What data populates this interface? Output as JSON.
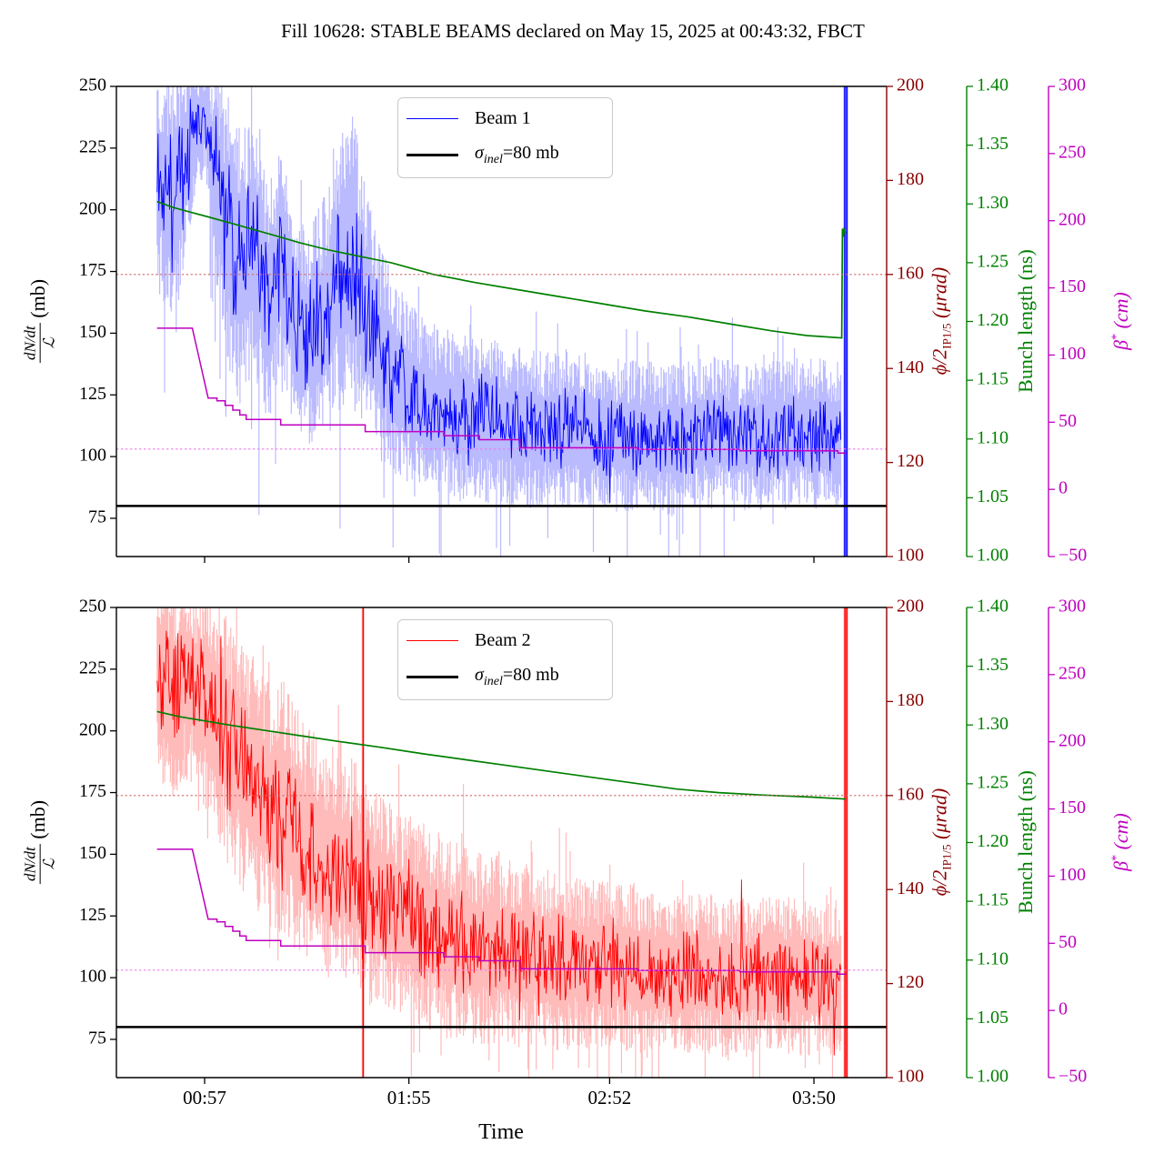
{
  "title": "Fill 10628: STABLE BEAMS declared on May 15, 2025 at 00:43:32, FBCT",
  "legend": {
    "beam1": "Beam 1",
    "beam2": "Beam 2",
    "sigma_symbol": "σ",
    "sigma_sub": "inel",
    "sigma_suffix": "=80 mb"
  },
  "axis_labels": {
    "left_numerator": "dN/dt",
    "left_denominator": "ℒ",
    "left_unit": " (mb)",
    "x_label": "Time",
    "phi_main": "ϕ/2",
    "phi_sub": "IP1/5",
    "phi_unit": " (μrad)",
    "bunch": "Bunch length (ns)",
    "beta_main": "β",
    "beta_sup": "*",
    "beta_unit": " (cm)"
  },
  "colors": {
    "beam1": "#0000ff",
    "beam1_band": "rgba(0,0,255,0.27)",
    "beam2": "#ff0000",
    "beam2_band": "rgba(255,0,0,0.27)",
    "bunch": "#008000",
    "beta": "#bf00bf",
    "beta_dashed": "#ee7bee",
    "phi": "#8b0000",
    "phi_dashed": "#cd6666",
    "sigma": "#000000",
    "axis": "#000000"
  },
  "axes_ticks": {
    "left_values": [
      250,
      225,
      200,
      175,
      150,
      125,
      100,
      75
    ],
    "left_labels": [
      "250",
      "225",
      "200",
      "175",
      "150",
      "125",
      "100",
      "75"
    ],
    "x_tick_minutes": [
      57,
      115,
      172,
      230
    ],
    "x_tick_labels": [
      "00:57",
      "01:55",
      "02:52",
      "03:50"
    ],
    "phi_values": [
      200,
      180,
      160,
      140,
      120,
      100
    ],
    "phi_labels": [
      "200",
      "180",
      "160",
      "140",
      "120",
      "100"
    ],
    "bunch_values": [
      1.4,
      1.35,
      1.3,
      1.25,
      1.2,
      1.15,
      1.1,
      1.05,
      1.0
    ],
    "bunch_labels": [
      "1.40",
      "1.35",
      "1.30",
      "1.25",
      "1.20",
      "1.15",
      "1.10",
      "1.05",
      "1.00"
    ],
    "beta_values": [
      300,
      250,
      200,
      150,
      100,
      50,
      0,
      -50
    ],
    "beta_labels": [
      "300",
      "250",
      "200",
      "150",
      "100",
      "50",
      "0",
      "−50"
    ]
  },
  "chart_data": {
    "type": "line",
    "title": "Fill 10628: STABLE BEAMS declared on May 15, 2025 at 00:43:32, FBCT",
    "x_axis": {
      "unit": "time of day (minutes from 00:00)",
      "xlim_minutes": [
        31.95,
        250.65
      ],
      "data_start_minutes": 43.53,
      "data_end_minutes": 239.3
    },
    "left_ylim": [
      59.5,
      250
    ],
    "phi_ylim": [
      100,
      200
    ],
    "bunch_ylim": [
      1.0,
      1.4
    ],
    "beta_ylim": [
      -50,
      300
    ],
    "sigma_inel_mb": 80,
    "phi_half_urad": 160,
    "beta_target_cm": 30,
    "panels": [
      {
        "name": "beam1",
        "beam_trend_t_center_halfwidth": [
          [
            43.5,
            215,
            42
          ],
          [
            47,
            205,
            50
          ],
          [
            51,
            215,
            45
          ],
          [
            54,
            232,
            28
          ],
          [
            57,
            238,
            22
          ],
          [
            60,
            215,
            40
          ],
          [
            63,
            195,
            52
          ],
          [
            67,
            176,
            55
          ],
          [
            71,
            186,
            50
          ],
          [
            75,
            163,
            48
          ],
          [
            79,
            180,
            46
          ],
          [
            83,
            153,
            43
          ],
          [
            87,
            149,
            43
          ],
          [
            91,
            156,
            48
          ],
          [
            95,
            176,
            58
          ],
          [
            99,
            181,
            58
          ],
          [
            103,
            156,
            48
          ],
          [
            108,
            139,
            41
          ],
          [
            113,
            129,
            37
          ],
          [
            118,
            122,
            34
          ],
          [
            124,
            118,
            33
          ],
          [
            130,
            116,
            33
          ],
          [
            137,
            114,
            33
          ],
          [
            145,
            112,
            32
          ],
          [
            153,
            111,
            31
          ],
          [
            161,
            112,
            31
          ],
          [
            170,
            109,
            30
          ],
          [
            180,
            108,
            30
          ],
          [
            190,
            107,
            30
          ],
          [
            200,
            110,
            30
          ],
          [
            210,
            108,
            29
          ],
          [
            220,
            109,
            29
          ],
          [
            228,
            110,
            30
          ],
          [
            234,
            108,
            30
          ],
          [
            237.8,
            109,
            30
          ]
        ],
        "spike_minutes": [
          238.75,
          239.35
        ],
        "bunch_length_ns": [
          [
            43.5,
            1.302
          ],
          [
            48,
            1.297
          ],
          [
            53,
            1.293
          ],
          [
            58,
            1.289
          ],
          [
            64,
            1.284
          ],
          [
            70,
            1.279
          ],
          [
            77,
            1.273
          ],
          [
            84,
            1.267
          ],
          [
            92,
            1.261
          ],
          [
            100,
            1.256
          ],
          [
            110,
            1.25
          ],
          [
            122,
            1.24
          ],
          [
            134,
            1.233
          ],
          [
            146,
            1.227
          ],
          [
            158,
            1.221
          ],
          [
            170,
            1.215
          ],
          [
            182,
            1.209
          ],
          [
            194,
            1.204
          ],
          [
            206,
            1.198
          ],
          [
            218,
            1.192
          ],
          [
            228,
            1.188
          ],
          [
            237.9,
            1.186
          ],
          [
            238.1,
            1.279
          ],
          [
            238.35,
            1.272
          ],
          [
            238.6,
            1.278
          ],
          [
            239.0,
            1.275
          ]
        ],
        "beta_star_cm": [
          [
            43.5,
            120
          ],
          [
            53.5,
            120
          ],
          [
            58,
            68
          ],
          [
            60.5,
            68
          ],
          [
            60.5,
            66
          ],
          [
            62.8,
            66
          ],
          [
            62.8,
            62.5
          ],
          [
            65,
            62.5
          ],
          [
            65,
            59
          ],
          [
            67,
            59
          ],
          [
            67,
            55.5
          ],
          [
            68.8,
            55.5
          ],
          [
            68.8,
            52
          ],
          [
            78.6,
            52
          ],
          [
            78.6,
            48
          ],
          [
            102.6,
            48
          ],
          [
            102.6,
            43
          ],
          [
            124.9,
            43
          ],
          [
            124.9,
            40
          ],
          [
            135,
            40
          ],
          [
            135,
            37
          ],
          [
            146.5,
            37
          ],
          [
            146.5,
            31
          ],
          [
            180,
            31
          ],
          [
            180,
            29.8
          ],
          [
            209,
            29.8
          ],
          [
            209,
            28.7
          ],
          [
            236.8,
            28.7
          ],
          [
            236.8,
            27
          ],
          [
            239.2,
            27
          ]
        ]
      },
      {
        "name": "beam2",
        "beam_trend_t_center_halfwidth": [
          [
            43.5,
            225,
            40
          ],
          [
            48,
            215,
            45
          ],
          [
            52,
            222,
            38
          ],
          [
            56,
            215,
            42
          ],
          [
            60,
            205,
            46
          ],
          [
            64,
            196,
            50
          ],
          [
            68,
            186,
            50
          ],
          [
            72,
            178,
            50
          ],
          [
            76,
            170,
            48
          ],
          [
            80,
            168,
            50
          ],
          [
            84,
            158,
            47
          ],
          [
            88,
            152,
            46
          ],
          [
            92,
            148,
            46
          ],
          [
            96,
            145,
            45
          ],
          [
            101,
            140,
            45
          ],
          [
            106,
            133,
            43
          ],
          [
            112,
            127,
            41
          ],
          [
            118,
            122,
            40
          ],
          [
            125,
            117,
            39
          ],
          [
            132,
            113,
            38
          ],
          [
            140,
            111,
            37
          ],
          [
            148,
            109,
            36
          ],
          [
            156,
            107,
            35
          ],
          [
            164,
            106,
            34
          ],
          [
            172,
            106,
            33
          ],
          [
            181,
            103,
            33
          ],
          [
            190,
            102,
            32
          ],
          [
            199,
            101,
            32
          ],
          [
            208,
            100,
            31
          ],
          [
            217,
            101,
            31
          ],
          [
            226,
            100,
            31
          ],
          [
            233,
            99,
            30
          ],
          [
            237.8,
            100,
            30
          ]
        ],
        "spike_minutes": [
          102,
          238.8,
          239.35
        ],
        "bunch_length_ns": [
          [
            43.5,
            1.3115
          ],
          [
            50,
            1.307
          ],
          [
            57,
            1.3035
          ],
          [
            65,
            1.2995
          ],
          [
            75,
            1.295
          ],
          [
            85,
            1.2905
          ],
          [
            95,
            1.286
          ],
          [
            107,
            1.281
          ],
          [
            119,
            1.2755
          ],
          [
            131,
            1.2705
          ],
          [
            143,
            1.2655
          ],
          [
            155,
            1.2605
          ],
          [
            167,
            1.2555
          ],
          [
            179,
            1.2505
          ],
          [
            191,
            1.2455
          ],
          [
            203,
            1.2425
          ],
          [
            215,
            1.2405
          ],
          [
            227,
            1.239
          ],
          [
            239,
            1.237
          ]
        ],
        "beta_star_cm": [
          [
            43.5,
            120
          ],
          [
            53.5,
            120
          ],
          [
            58,
            68
          ],
          [
            60.5,
            68
          ],
          [
            60.5,
            66
          ],
          [
            62.8,
            66
          ],
          [
            62.8,
            62.5
          ],
          [
            65,
            62.5
          ],
          [
            65,
            59
          ],
          [
            67,
            59
          ],
          [
            67,
            55.5
          ],
          [
            68.8,
            55.5
          ],
          [
            68.8,
            52
          ],
          [
            78.6,
            52
          ],
          [
            78.6,
            48
          ],
          [
            102.6,
            48
          ],
          [
            102.6,
            43
          ],
          [
            124.9,
            43
          ],
          [
            124.9,
            40
          ],
          [
            135,
            40
          ],
          [
            135,
            37
          ],
          [
            146.5,
            37
          ],
          [
            146.5,
            31
          ],
          [
            180,
            31
          ],
          [
            180,
            29.8
          ],
          [
            209,
            29.8
          ],
          [
            209,
            28.7
          ],
          [
            236.8,
            28.7
          ],
          [
            236.8,
            27
          ],
          [
            239.2,
            27
          ]
        ]
      }
    ]
  }
}
